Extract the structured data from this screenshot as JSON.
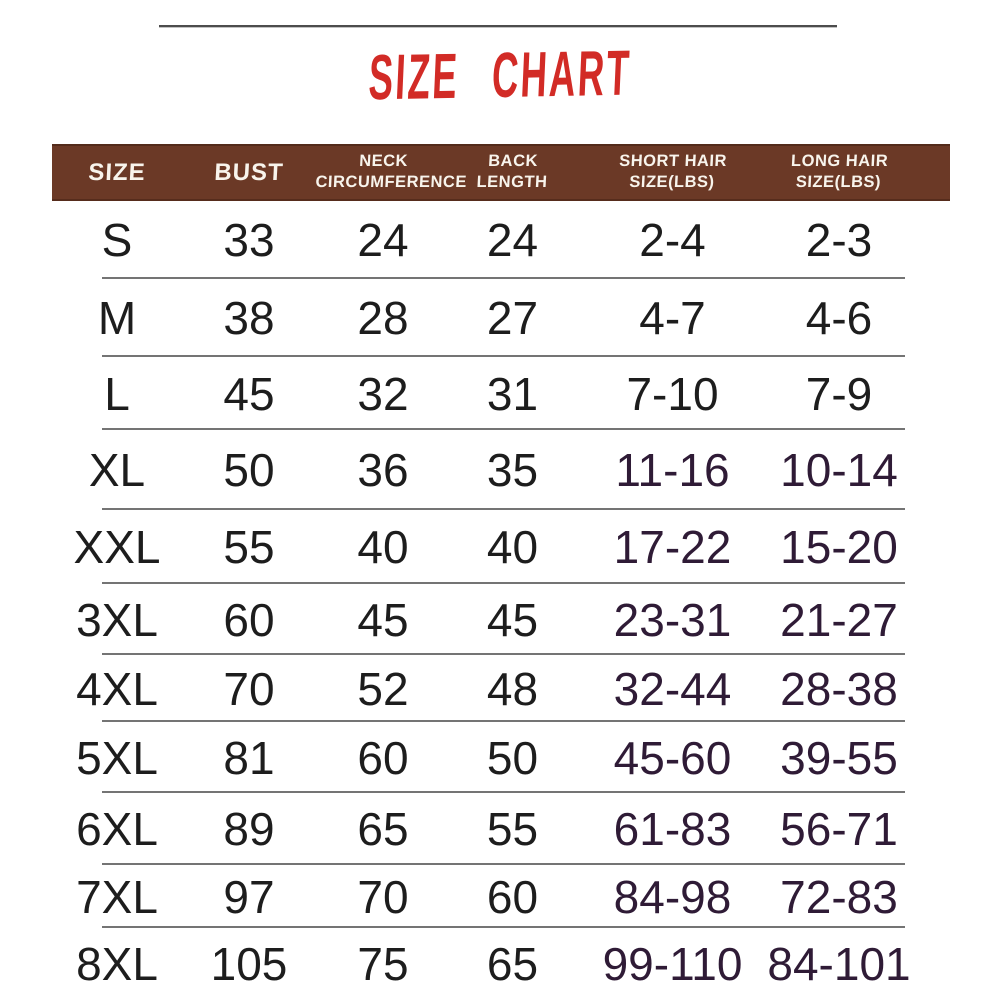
{
  "title": "SIZE CHART",
  "colors": {
    "header_bg": "#6b3926",
    "title_red": "#d22b26",
    "hair_purple": "#2f1b36",
    "body_text": "#1d1d1d",
    "divider": "#747474",
    "header_text": "#f8f4ec"
  },
  "table": {
    "columns": [
      {
        "id": "size",
        "label": "SIZE",
        "lines": [
          "SIZE"
        ]
      },
      {
        "id": "bust",
        "label": "BUST",
        "lines": [
          "BUST"
        ]
      },
      {
        "id": "neck-circumference",
        "label": "NECK CIRCUMFERENCE",
        "lines": [
          "NECK",
          "CIRCUMFERENCE"
        ]
      },
      {
        "id": "back-length",
        "label": "BACK LENGTH",
        "lines": [
          "BACK",
          "LENGTH"
        ]
      },
      {
        "id": "short-hair-size-lbs",
        "label": "SHORT HAIR SIZE(LBS)",
        "lines": [
          "SHORT HAIR",
          "SIZE(LBS)"
        ]
      },
      {
        "id": "long-hair-size-lbs",
        "label": "LONG HAIR SIZE(LBS)",
        "lines": [
          "LONG HAIR",
          "SIZE(LBS)"
        ]
      }
    ],
    "rows": [
      {
        "size": "S",
        "bust": "33",
        "neck_circumference": "24",
        "back_length": "24",
        "short_hair_size_lbs": "2-4",
        "long_hair_size_lbs": "2-3"
      },
      {
        "size": "M",
        "bust": "38",
        "neck_circumference": "28",
        "back_length": "27",
        "short_hair_size_lbs": "4-7",
        "long_hair_size_lbs": "4-6"
      },
      {
        "size": "L",
        "bust": "45",
        "neck_circumference": "32",
        "back_length": "31",
        "short_hair_size_lbs": "7-10",
        "long_hair_size_lbs": "7-9"
      },
      {
        "size": "XL",
        "bust": "50",
        "neck_circumference": "36",
        "back_length": "35",
        "short_hair_size_lbs": "11-16",
        "long_hair_size_lbs": "10-14"
      },
      {
        "size": "XXL",
        "bust": "55",
        "neck_circumference": "40",
        "back_length": "40",
        "short_hair_size_lbs": "17-22",
        "long_hair_size_lbs": "15-20"
      },
      {
        "size": "3XL",
        "bust": "60",
        "neck_circumference": "45",
        "back_length": "45",
        "short_hair_size_lbs": "23-31",
        "long_hair_size_lbs": "21-27"
      },
      {
        "size": "4XL",
        "bust": "70",
        "neck_circumference": "52",
        "back_length": "48",
        "short_hair_size_lbs": "32-44",
        "long_hair_size_lbs": "28-38"
      },
      {
        "size": "5XL",
        "bust": "81",
        "neck_circumference": "60",
        "back_length": "50",
        "short_hair_size_lbs": "45-60",
        "long_hair_size_lbs": "39-55"
      },
      {
        "size": "6XL",
        "bust": "89",
        "neck_circumference": "65",
        "back_length": "55",
        "short_hair_size_lbs": "61-83",
        "long_hair_size_lbs": "56-71"
      },
      {
        "size": "7XL",
        "bust": "97",
        "neck_circumference": "70",
        "back_length": "60",
        "short_hair_size_lbs": "84-98",
        "long_hair_size_lbs": "72-83"
      },
      {
        "size": "8XL",
        "bust": "105",
        "neck_circumference": "75",
        "back_length": "65",
        "short_hair_size_lbs": "99-110",
        "long_hair_size_lbs": "84-101"
      }
    ]
  },
  "chart_data": {
    "type": "table",
    "title": "SIZE CHART",
    "columns": [
      "SIZE",
      "BUST",
      "NECK CIRCUMFERENCE",
      "BACK LENGTH",
      "SHORT HAIR SIZE(LBS)",
      "LONG HAIR SIZE(LBS)"
    ],
    "rows": [
      [
        "S",
        "33",
        "24",
        "24",
        "2-4",
        "2-3"
      ],
      [
        "M",
        "38",
        "28",
        "27",
        "4-7",
        "4-6"
      ],
      [
        "L",
        "45",
        "32",
        "31",
        "7-10",
        "7-9"
      ],
      [
        "XL",
        "50",
        "36",
        "35",
        "11-16",
        "10-14"
      ],
      [
        "XXL",
        "55",
        "40",
        "40",
        "17-22",
        "15-20"
      ],
      [
        "3XL",
        "60",
        "45",
        "45",
        "23-31",
        "21-27"
      ],
      [
        "4XL",
        "70",
        "52",
        "48",
        "32-44",
        "28-38"
      ],
      [
        "5XL",
        "81",
        "60",
        "50",
        "45-60",
        "39-55"
      ],
      [
        "6XL",
        "89",
        "65",
        "55",
        "61-83",
        "56-71"
      ],
      [
        "7XL",
        "97",
        "70",
        "60",
        "84-98",
        "72-83"
      ],
      [
        "8XL",
        "105",
        "75",
        "65",
        "99-110",
        "84-101"
      ]
    ]
  }
}
